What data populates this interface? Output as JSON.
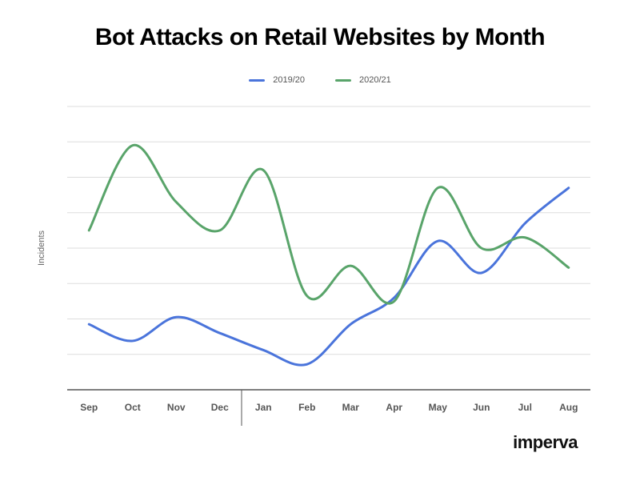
{
  "chart_data": {
    "type": "line",
    "title": "Bot Attacks on Retail Websites by Month",
    "xlabel": "",
    "ylabel": "Incidents",
    "categories": [
      "Sep",
      "Oct",
      "Nov",
      "Dec",
      "Jan",
      "Feb",
      "Mar",
      "Apr",
      "May",
      "Jun",
      "Jul",
      "Aug"
    ],
    "ylim": [
      0,
      8
    ],
    "y_gridlines": 8,
    "y_tick_labels_shown": false,
    "legend_position": "top-center",
    "year_divider_after": "Dec",
    "series": [
      {
        "name": "2019/20",
        "color": "#4a74db",
        "values": [
          1.85,
          1.38,
          2.05,
          1.6,
          1.12,
          0.72,
          1.85,
          2.6,
          4.2,
          3.3,
          4.7,
          5.7
        ]
      },
      {
        "name": "2020/21",
        "color": "#59a46a",
        "values": [
          4.5,
          6.9,
          5.3,
          4.5,
          6.2,
          2.65,
          3.5,
          2.5,
          5.7,
          4.0,
          4.3,
          3.45
        ]
      }
    ]
  },
  "brand": {
    "logo_text": "imperva"
  }
}
